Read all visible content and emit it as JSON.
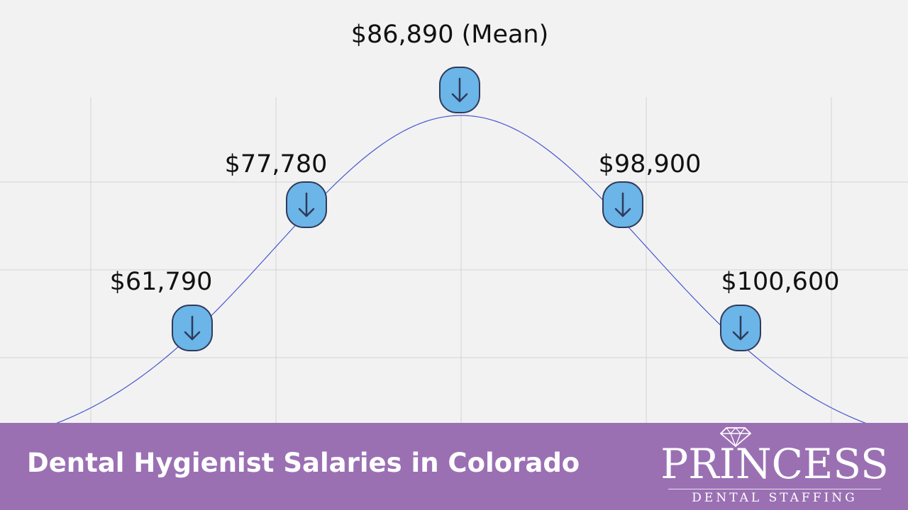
{
  "chart_data": {
    "type": "line",
    "title": "",
    "xlabel": "",
    "ylabel": "",
    "grid": true,
    "distribution": "normal",
    "points": [
      {
        "label": "$61,790",
        "value": 61790
      },
      {
        "label": "$77,780",
        "value": 77780
      },
      {
        "label": "$86,890 (Mean)",
        "value": 86890
      },
      {
        "label": "$98,900",
        "value": 98900
      },
      {
        "label": "$100,600",
        "value": 100600
      }
    ],
    "colors": {
      "curve": "#4a56d0",
      "marker_fill": "#6bb5e8",
      "marker_stroke": "#2f3a5a",
      "grid": "#d4d4d4",
      "text": "#111111"
    }
  },
  "footer": {
    "title": "Dental Hygienist Salaries in Colorado",
    "background": "#9a70b3"
  },
  "logo": {
    "main": "PRINCESS",
    "sub": "DENTAL STAFFING",
    "icon": "diamond-icon"
  }
}
